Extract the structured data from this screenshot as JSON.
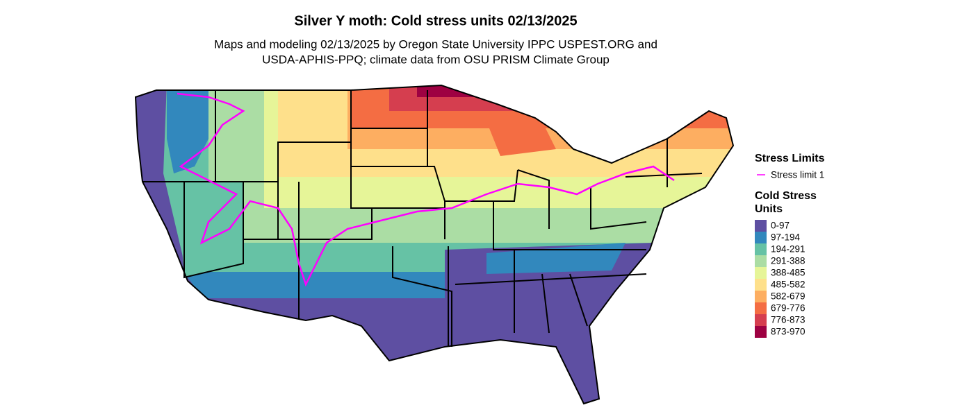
{
  "title": "Silver Y moth: Cold stress units 02/13/2025",
  "subtitle": [
    "Maps and modeling 02/13/2025 by Oregon State University IPPC USPEST.ORG and",
    "USDA-APHIS-PPQ; climate data from OSU PRISM Climate Group"
  ],
  "legend": {
    "limits_title": "Stress Limits",
    "limits": [
      {
        "label": "Stress limit 1",
        "color": "#ff00ff"
      }
    ],
    "units_title": [
      "Cold Stress",
      "Units"
    ],
    "classes": [
      {
        "label": "0-97",
        "color": "#5e4fa2"
      },
      {
        "label": "97-194",
        "color": "#3288bd"
      },
      {
        "label": "194-291",
        "color": "#66c2a5"
      },
      {
        "label": "291-388",
        "color": "#abdda4"
      },
      {
        "label": "388-485",
        "color": "#e6f598"
      },
      {
        "label": "485-582",
        "color": "#fee08b"
      },
      {
        "label": "582-679",
        "color": "#fdae61"
      },
      {
        "label": "679-776",
        "color": "#f46d43"
      },
      {
        "label": "776-873",
        "color": "#d53e4f"
      },
      {
        "label": "873-970",
        "color": "#9e0142"
      }
    ]
  }
}
